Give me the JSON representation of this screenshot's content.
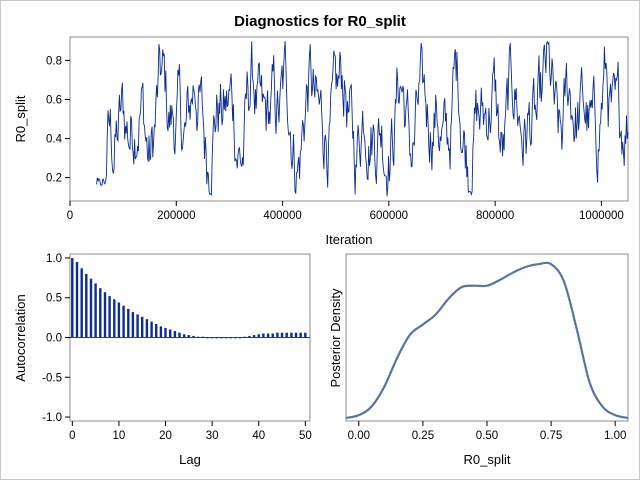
{
  "title": "Diagnostics for R0_split",
  "trace": {
    "xlabel": "Iteration",
    "ylabel": "R0_split",
    "xlim": [
      0,
      1050000
    ],
    "ylim": [
      0.08,
      0.92
    ],
    "xticks": [
      0,
      200000,
      400000,
      600000,
      800000,
      1000000
    ],
    "xtick_labels": [
      "0",
      "200000",
      "400000",
      "600000",
      "800000",
      "1000000"
    ],
    "yticks": [
      0.2,
      0.4,
      0.6,
      0.8
    ],
    "ytick_labels": [
      "0.2",
      "0.4",
      "0.6",
      "0.8"
    ],
    "color": "#0d2d8f",
    "x_start": 50000,
    "x_end": 1050000,
    "n_points": 700,
    "value_range": [
      0.1,
      0.9
    ]
  },
  "acf": {
    "type": "bar",
    "xlabel": "Lag",
    "ylabel": "Autocorrelation",
    "xlim": [
      -0.5,
      51
    ],
    "ylim": [
      -1.05,
      1.05
    ],
    "xticks": [
      0,
      10,
      20,
      30,
      40,
      50
    ],
    "xtick_labels": [
      "0",
      "10",
      "20",
      "30",
      "40",
      "50"
    ],
    "yticks": [
      -1.0,
      -0.5,
      0.0,
      0.5,
      1.0
    ],
    "ytick_labels": [
      "-1.0",
      "-0.5",
      "0.0",
      "0.5",
      "1.0"
    ],
    "color": "#0d2d8f"
  },
  "density": {
    "type": "line",
    "xlabel": "R0_split",
    "ylabel": "Posterior Density",
    "xlim": [
      -0.05,
      1.05
    ],
    "xticks": [
      0.0,
      0.25,
      0.5,
      0.75,
      1.0
    ],
    "xtick_labels": [
      "0.00",
      "0.25",
      "0.50",
      "0.75",
      "1.00"
    ],
    "color": "#5b7497"
  },
  "chart_data": [
    {
      "type": "line",
      "title": "Diagnostics for R0_split",
      "xlabel": "Iteration",
      "ylabel": "R0_split",
      "xlim": [
        0,
        1050000
      ],
      "ylim": [
        0.08,
        0.92
      ],
      "note_values": "trace fluctuates rapidly between about 0.1 and 0.9 from iteration 50000 to 1050000"
    },
    {
      "type": "bar",
      "xlabel": "Lag",
      "ylabel": "Autocorrelation",
      "x": [
        0,
        1,
        2,
        3,
        4,
        5,
        6,
        7,
        8,
        9,
        10,
        11,
        12,
        13,
        14,
        15,
        16,
        17,
        18,
        19,
        20,
        21,
        22,
        23,
        24,
        25,
        26,
        27,
        28,
        29,
        30,
        31,
        32,
        33,
        34,
        35,
        36,
        37,
        38,
        39,
        40,
        41,
        42,
        43,
        44,
        45,
        46,
        47,
        48,
        49,
        50
      ],
      "values": [
        1.0,
        0.95,
        0.87,
        0.8,
        0.74,
        0.68,
        0.62,
        0.57,
        0.52,
        0.48,
        0.44,
        0.4,
        0.36,
        0.32,
        0.29,
        0.26,
        0.23,
        0.2,
        0.17,
        0.14,
        0.12,
        0.1,
        0.08,
        0.06,
        0.04,
        0.03,
        0.02,
        0.01,
        0.01,
        0.0,
        0.0,
        0.0,
        0.0,
        0.0,
        0.0,
        0.0,
        0.0,
        0.01,
        0.02,
        0.03,
        0.04,
        0.05,
        0.05,
        0.05,
        0.06,
        0.06,
        0.06,
        0.06,
        0.06,
        0.06,
        0.06
      ],
      "ylim": [
        -1.05,
        1.05
      ]
    },
    {
      "type": "line",
      "xlabel": "R0_split",
      "ylabel": "Posterior Density",
      "x": [
        -0.05,
        0.0,
        0.05,
        0.1,
        0.15,
        0.2,
        0.25,
        0.3,
        0.35,
        0.4,
        0.45,
        0.5,
        0.55,
        0.6,
        0.65,
        0.7,
        0.75,
        0.8,
        0.85,
        0.9,
        0.95,
        1.0,
        1.05
      ],
      "values": [
        0.0,
        0.02,
        0.08,
        0.22,
        0.42,
        0.58,
        0.65,
        0.72,
        0.83,
        0.91,
        0.92,
        0.92,
        0.96,
        1.01,
        1.05,
        1.07,
        1.07,
        0.95,
        0.62,
        0.25,
        0.08,
        0.02,
        0.0
      ]
    }
  ]
}
